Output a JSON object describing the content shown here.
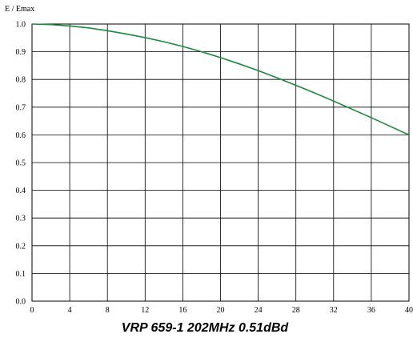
{
  "chart_data": {
    "type": "line",
    "title": "VRP 659-1 202MHz 0.51dBd",
    "ylabel": "E / Emax",
    "xlabel": "",
    "xlim": [
      0,
      40
    ],
    "ylim": [
      0,
      1
    ],
    "x_ticks": [
      "0",
      "4",
      "8",
      "12",
      "16",
      "20",
      "24",
      "28",
      "32",
      "36",
      "40"
    ],
    "y_ticks": [
      "0.0",
      "0.1",
      "0.2",
      "0.3",
      "0.4",
      "0.5",
      "0.6",
      "0.7",
      "0.8",
      "0.9",
      "1.0"
    ],
    "grid": true,
    "series": [
      {
        "color": "#1a8a3c",
        "x": [
          0,
          2,
          4,
          6,
          8,
          10,
          12,
          14,
          16,
          18,
          20,
          22,
          24,
          26,
          28,
          30,
          32,
          34,
          36,
          38,
          40
        ],
        "y": [
          1.0,
          0.998,
          0.993,
          0.986,
          0.976,
          0.964,
          0.951,
          0.936,
          0.919,
          0.9,
          0.879,
          0.856,
          0.832,
          0.806,
          0.779,
          0.751,
          0.722,
          0.692,
          0.662,
          0.631,
          0.6
        ]
      }
    ]
  }
}
